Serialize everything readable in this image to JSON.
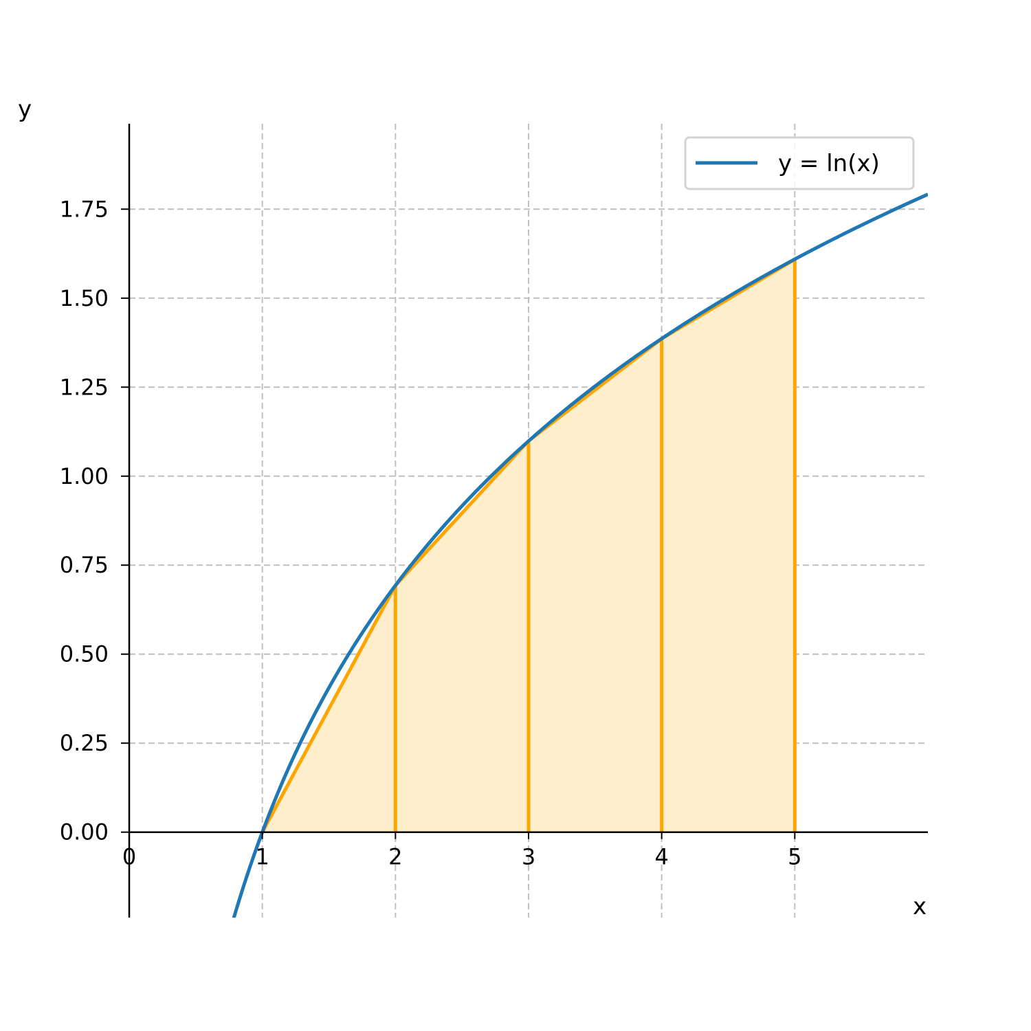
{
  "chart_data": {
    "type": "line",
    "function": "ln(x)",
    "xlim": [
      0,
      6
    ],
    "ylim": [
      -0.24,
      1.99
    ],
    "xlabel": "x",
    "ylabel": "y",
    "x_ticks": [
      0,
      1,
      2,
      3,
      4,
      5
    ],
    "x_tick_labels": [
      "0",
      "1",
      "2",
      "3",
      "4",
      "5"
    ],
    "y_ticks": [
      0,
      0.25,
      0.5,
      0.75,
      1.0,
      1.25,
      1.5,
      1.75
    ],
    "y_tick_labels": [
      "0.00",
      "0.25",
      "0.50",
      "0.75",
      "1.00",
      "1.25",
      "1.50",
      "1.75"
    ],
    "grid": true,
    "grid_style": "dashed",
    "legend_position": "top-right",
    "series": [
      {
        "name": "y = ln(x)",
        "color": "#1f77b4",
        "x_range": [
          0.78,
          6
        ]
      }
    ],
    "trapezoid": {
      "color": "#ffa500",
      "fill_color": "#ffeecc",
      "x": [
        1,
        2,
        3,
        4,
        5
      ],
      "y": [
        0,
        0.693,
        1.099,
        1.386,
        1.609
      ]
    }
  }
}
